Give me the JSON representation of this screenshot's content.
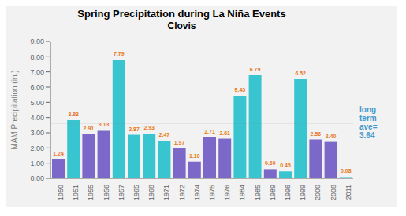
{
  "chart_data": {
    "type": "bar",
    "title": "Spring Precipitation during La Niña Events",
    "subtitle": "Clovis",
    "y_label": "MAM Precipitation (in.)",
    "categories": [
      "1950",
      "1951",
      "1955",
      "1956",
      "1957",
      "1965",
      "1968",
      "1971",
      "1972",
      "1974",
      "1975",
      "1976",
      "1984",
      "1985",
      "1989",
      "1996",
      "1999",
      "2000",
      "2008",
      "2011"
    ],
    "values": [
      1.24,
      3.83,
      2.91,
      3.13,
      7.79,
      2.87,
      2.93,
      2.47,
      1.97,
      1.1,
      2.71,
      2.61,
      5.43,
      6.79,
      0.6,
      0.45,
      6.52,
      2.56,
      2.4,
      0.08
    ],
    "value_labels": [
      "1.24",
      "3.83",
      "2.91",
      "3.13",
      "7.79",
      "2.87",
      "2.93",
      "2.47",
      "1.97",
      "1.10",
      "2.71",
      "2.61",
      "5.43",
      "6.79",
      "0.60",
      "0.45",
      "6.52",
      "2.56",
      "2.40",
      "0.08"
    ],
    "colors": [
      "#7B68C8",
      "#38C5D0",
      "#7B68C8",
      "#7B68C8",
      "#38C5D0",
      "#38C5D0",
      "#38C5D0",
      "#38C5D0",
      "#7B68C8",
      "#7B68C8",
      "#7B68C8",
      "#7B68C8",
      "#38C5D0",
      "#38C5D0",
      "#7B68C8",
      "#38C5D0",
      "#38C5D0",
      "#7B68C8",
      "#7B68C8",
      "#38C5D0"
    ],
    "reference_line": {
      "value": 3.64,
      "label": "long\nterm\nave=\n3.64",
      "color": "#888888"
    },
    "ylim": [
      0,
      9
    ],
    "yticks": [
      {
        "value": 0,
        "label": "0.00"
      },
      {
        "value": 1,
        "label": "1.00"
      },
      {
        "value": 2,
        "label": "2.00"
      },
      {
        "value": 3,
        "label": "3.00"
      },
      {
        "value": 4,
        "label": "4.00"
      },
      {
        "value": 5,
        "label": "5.00"
      },
      {
        "value": 6,
        "label": "6.00"
      },
      {
        "value": 7,
        "label": "7.00"
      },
      {
        "value": 8,
        "label": "8.00"
      },
      {
        "value": 9,
        "label": "9.00"
      }
    ],
    "data_labels": true,
    "grid": false
  }
}
